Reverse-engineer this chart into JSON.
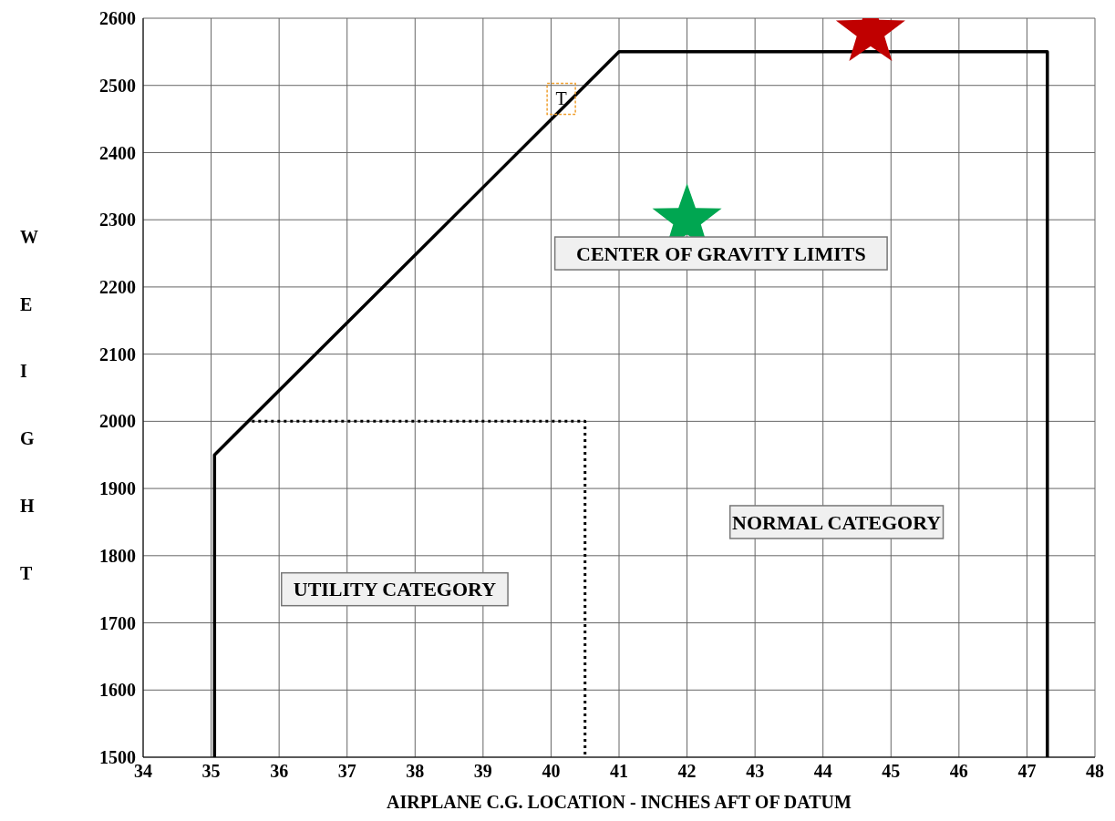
{
  "chart_data": {
    "type": "line",
    "xlabel": "AIRPLANE C.G. LOCATION - INCHES AFT OF DATUM",
    "ylabel": "WEIGHT",
    "xlim": [
      34,
      48
    ],
    "xticks": [
      34,
      35,
      36,
      37,
      38,
      39,
      40,
      41,
      42,
      43,
      44,
      45,
      46,
      47,
      48
    ],
    "ylim": [
      1500,
      2600
    ],
    "yticks": [
      1500,
      1600,
      1700,
      1800,
      1900,
      2000,
      2100,
      2200,
      2300,
      2400,
      2500,
      2600
    ],
    "grid": true,
    "marker": "none",
    "series": [
      {
        "color": "#000000",
        "line_style": "solid",
        "x": [
          35.05,
          35.05,
          41,
          47.3,
          47.3
        ],
        "values": [
          1500,
          1950,
          2550,
          2550,
          1500
        ]
      },
      {
        "color": "#000000",
        "line_style": "dotted",
        "x": [
          35.6,
          40.5,
          40.5
        ],
        "values": [
          2000,
          2000,
          1500
        ]
      },
      {
        "type": "scatter",
        "color": "#c00000",
        "marker": "star",
        "x": [
          44.7
        ],
        "values": [
          2580
        ]
      },
      {
        "type": "scatter",
        "color": "#00a651",
        "marker": "star",
        "x": [
          42.0
        ],
        "values": [
          2300
        ]
      }
    ],
    "annotations": [
      "CENTER OF GRAVITY LIMITS",
      "NORMAL CATEGORY",
      "UTILITY CATEGORY",
      "T"
    ]
  }
}
